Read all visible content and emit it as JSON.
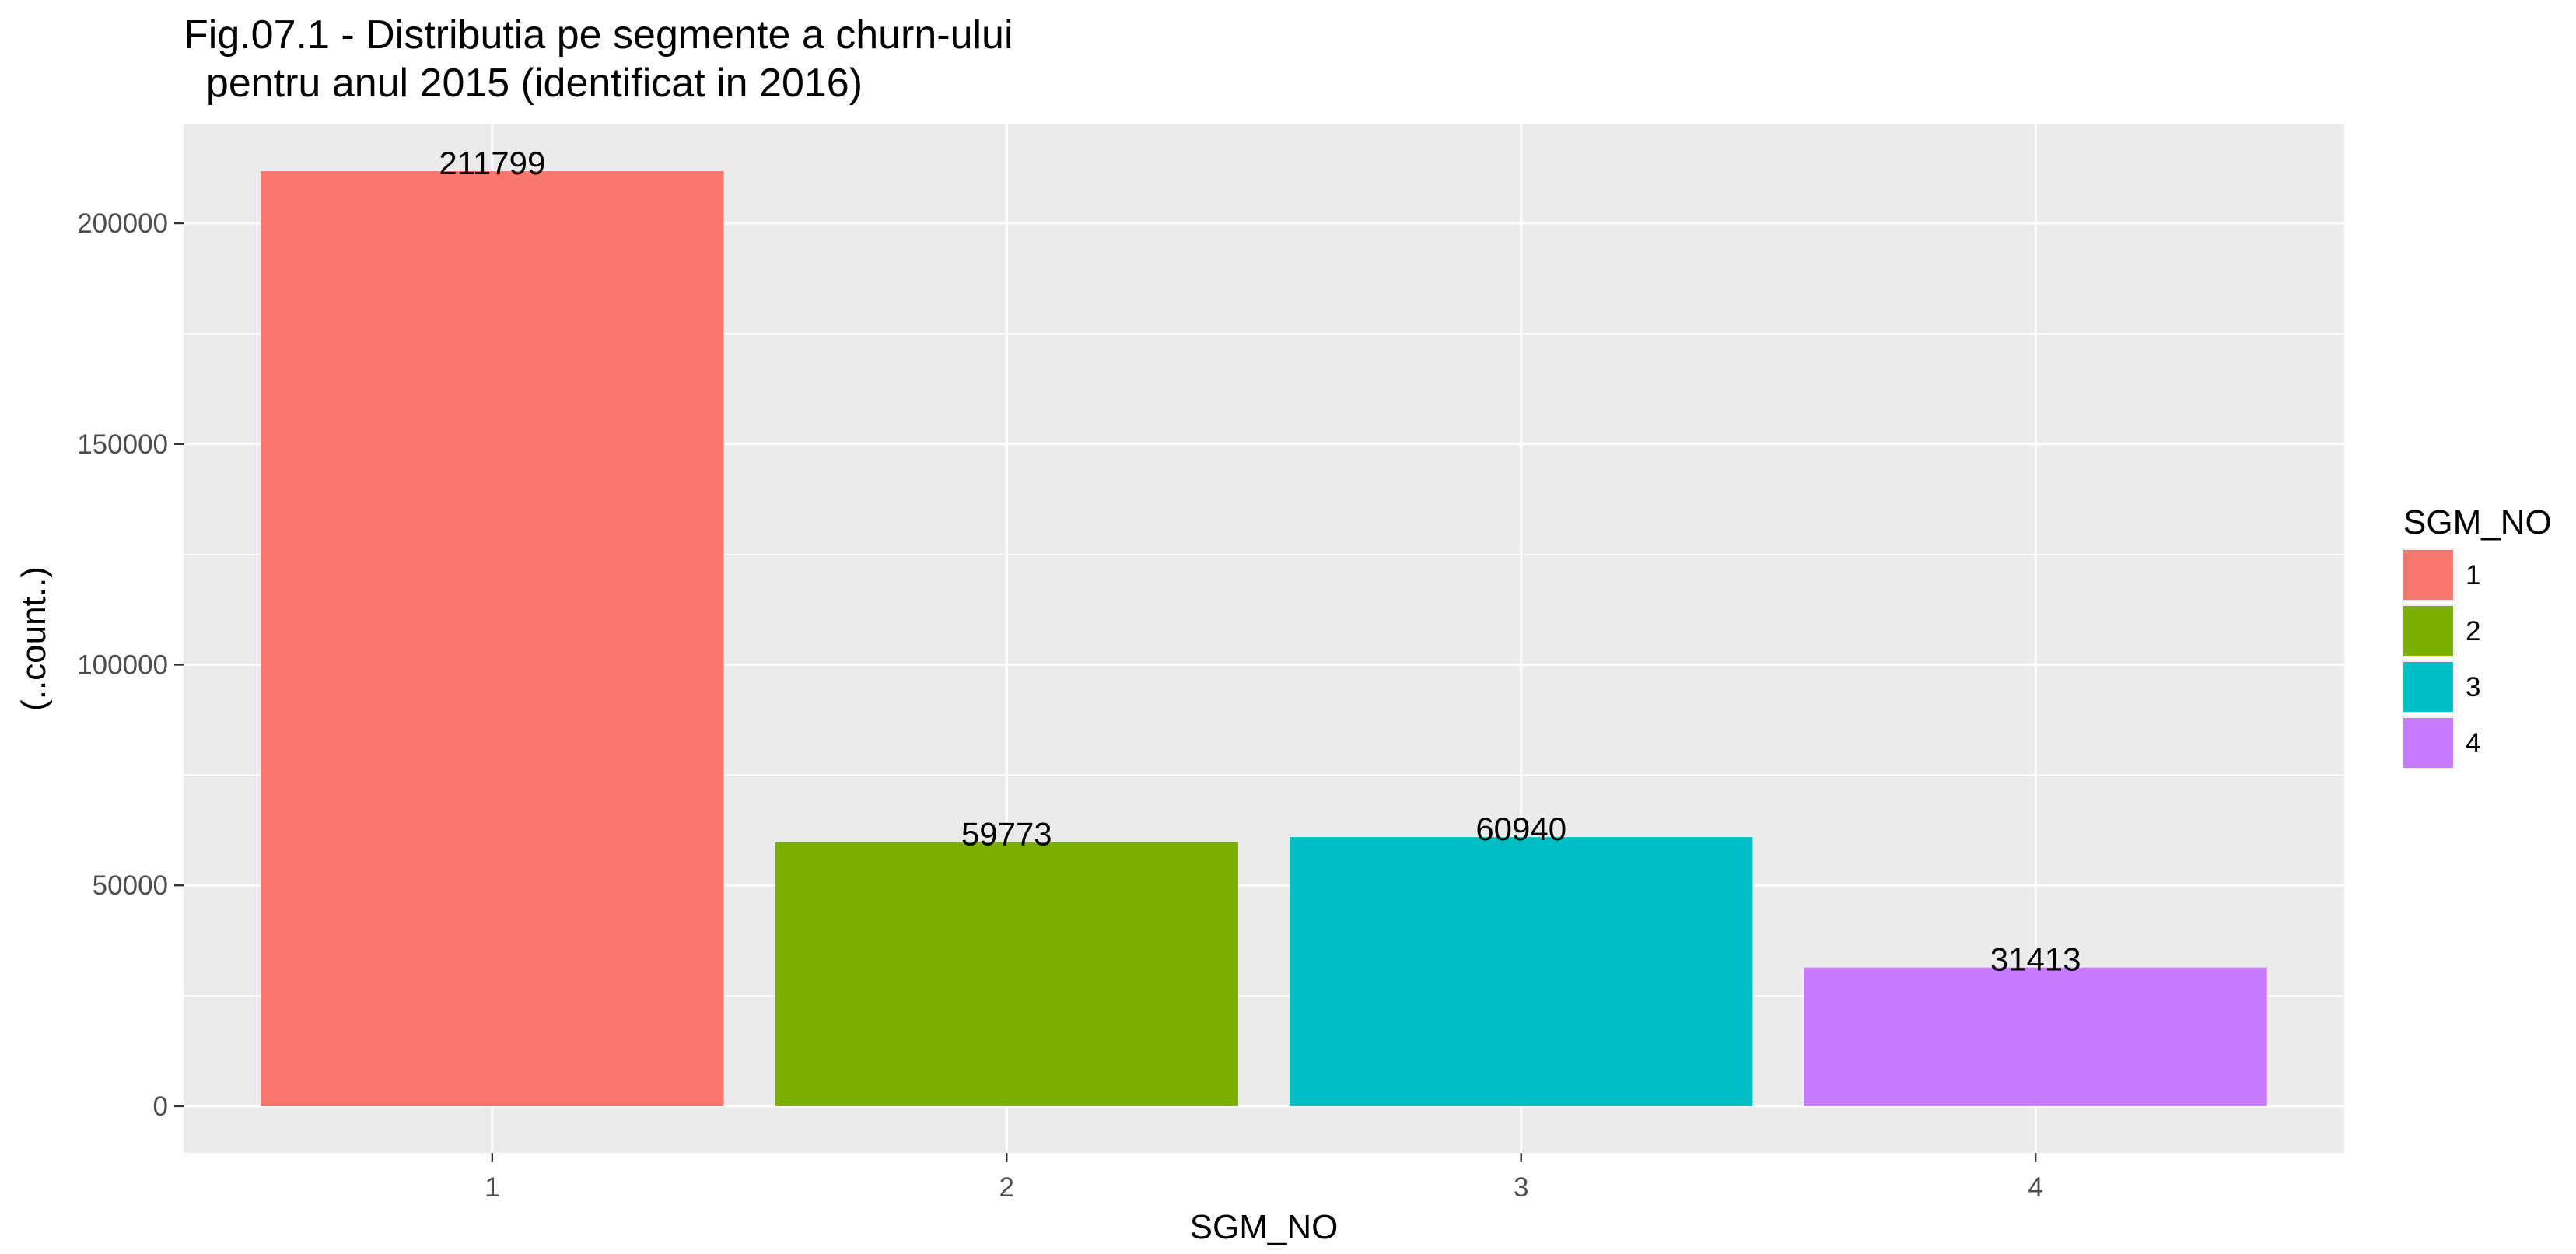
{
  "chart_data": {
    "type": "bar",
    "title_lines": [
      "Fig.07.1 - Distributia pe segmente a churn-ului",
      "  pentru anul 2015 (identificat in 2016)"
    ],
    "xlabel": "SGM_NO",
    "ylabel": "(..count..)",
    "categories": [
      "1",
      "2",
      "3",
      "4"
    ],
    "values": [
      211799,
      59773,
      60940,
      31413
    ],
    "data_labels": [
      "211799",
      "59773",
      "60940",
      "31413"
    ],
    "colors": [
      "#F8766D",
      "#7CAE00",
      "#00BFC4",
      "#C77CFF"
    ],
    "y_ticks": [
      0,
      50000,
      100000,
      150000,
      200000
    ],
    "y_tick_labels": [
      "0",
      "50000",
      "100000",
      "150000",
      "200000"
    ],
    "ylim": [
      -10590,
      222389
    ],
    "grid": true,
    "legend": {
      "title": "SGM_NO",
      "placement": "right",
      "entries": [
        "1",
        "2",
        "3",
        "4"
      ]
    }
  }
}
